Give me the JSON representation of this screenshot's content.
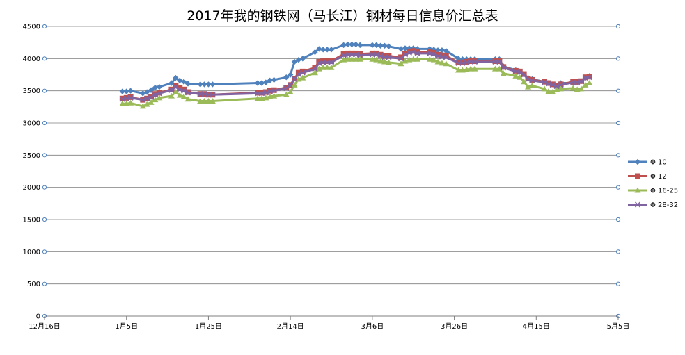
{
  "chart_data": {
    "type": "line",
    "title": "2017年我的钢铁网（马长江）钢材每日信息价汇总表",
    "xlabel": "",
    "ylabel": "",
    "ylim": [
      0,
      4500
    ],
    "y_ticks": [
      0,
      500,
      1000,
      1500,
      2000,
      2500,
      3000,
      3500,
      4000,
      4500
    ],
    "x_tick_labels": [
      "12月16日",
      "1月5日",
      "1月25日",
      "2月14日",
      "3月6日",
      "3月26日",
      "4月15日",
      "5月5日"
    ],
    "x_tick_dates": [
      "2016-12-16",
      "2017-01-05",
      "2017-01-25",
      "2017-02-14",
      "2017-03-06",
      "2017-03-26",
      "2017-04-15",
      "2017-05-05"
    ],
    "x_range": [
      "2016-12-16",
      "2017-05-05"
    ],
    "grid": true,
    "legend_position": "right",
    "x": [
      "2017-01-04",
      "2017-01-05",
      "2017-01-06",
      "2017-01-09",
      "2017-01-10",
      "2017-01-11",
      "2017-01-12",
      "2017-01-13",
      "2017-01-16",
      "2017-01-17",
      "2017-01-18",
      "2017-01-19",
      "2017-01-20",
      "2017-01-23",
      "2017-01-24",
      "2017-01-25",
      "2017-01-26",
      "2017-02-06",
      "2017-02-07",
      "2017-02-08",
      "2017-02-09",
      "2017-02-10",
      "2017-02-13",
      "2017-02-14",
      "2017-02-15",
      "2017-02-16",
      "2017-02-17",
      "2017-02-20",
      "2017-02-21",
      "2017-02-22",
      "2017-02-23",
      "2017-02-24",
      "2017-02-27",
      "2017-02-28",
      "2017-03-01",
      "2017-03-02",
      "2017-03-03",
      "2017-03-06",
      "2017-03-07",
      "2017-03-08",
      "2017-03-09",
      "2017-03-10",
      "2017-03-13",
      "2017-03-14",
      "2017-03-15",
      "2017-03-16",
      "2017-03-17",
      "2017-03-20",
      "2017-03-21",
      "2017-03-22",
      "2017-03-23",
      "2017-03-24",
      "2017-03-27",
      "2017-03-28",
      "2017-03-29",
      "2017-03-30",
      "2017-03-31",
      "2017-04-05",
      "2017-04-06",
      "2017-04-07",
      "2017-04-10",
      "2017-04-11",
      "2017-04-12",
      "2017-04-13",
      "2017-04-14",
      "2017-04-17",
      "2017-04-18",
      "2017-04-19",
      "2017-04-20",
      "2017-04-21",
      "2017-04-24",
      "2017-04-25",
      "2017-04-26",
      "2017-04-27",
      "2017-04-28"
    ],
    "series": [
      {
        "name": "Φ 10",
        "color": "#4F81BD",
        "marker": "diamond",
        "values": [
          3490,
          3490,
          3500,
          3460,
          3480,
          3510,
          3550,
          3560,
          3620,
          3700,
          3660,
          3640,
          3610,
          3600,
          3600,
          3600,
          3600,
          3620,
          3620,
          3630,
          3660,
          3670,
          3710,
          3750,
          3950,
          3980,
          4000,
          4100,
          4150,
          4140,
          4140,
          4140,
          4210,
          4220,
          4220,
          4220,
          4210,
          4210,
          4210,
          4200,
          4200,
          4190,
          4150,
          4160,
          4160,
          4160,
          4150,
          4150,
          4140,
          4130,
          4130,
          4120,
          4000,
          3990,
          3990,
          3990,
          3990,
          3990,
          3990,
          3880,
          3820,
          3800,
          3760,
          3700,
          3680,
          3640,
          3620,
          3600,
          3580,
          3620,
          3620,
          3630,
          3650,
          3700,
          3730
        ]
      },
      {
        "name": "Φ 12",
        "color": "#C0504D",
        "marker": "square",
        "values": [
          3380,
          3390,
          3400,
          3360,
          3380,
          3410,
          3450,
          3470,
          3520,
          3580,
          3540,
          3520,
          3480,
          3450,
          3450,
          3440,
          3440,
          3470,
          3470,
          3480,
          3500,
          3510,
          3550,
          3590,
          3690,
          3780,
          3800,
          3860,
          3950,
          3960,
          3960,
          3960,
          4070,
          4080,
          4080,
          4080,
          4070,
          4080,
          4080,
          4060,
          4040,
          4040,
          4020,
          4080,
          4110,
          4120,
          4100,
          4100,
          4090,
          4060,
          4050,
          4040,
          3940,
          3940,
          3950,
          3960,
          3960,
          3960,
          3960,
          3870,
          3810,
          3800,
          3760,
          3690,
          3670,
          3640,
          3620,
          3600,
          3580,
          3600,
          3640,
          3640,
          3650,
          3710,
          3720
        ]
      },
      {
        "name": "Φ 16-25",
        "color": "#9BBB59",
        "marker": "triangle",
        "values": [
          3300,
          3300,
          3310,
          3260,
          3290,
          3320,
          3360,
          3390,
          3420,
          3480,
          3430,
          3410,
          3370,
          3340,
          3340,
          3340,
          3340,
          3380,
          3380,
          3390,
          3410,
          3420,
          3440,
          3480,
          3590,
          3680,
          3700,
          3780,
          3840,
          3860,
          3860,
          3860,
          3980,
          3990,
          3990,
          3990,
          3990,
          3990,
          3980,
          3960,
          3950,
          3940,
          3920,
          3960,
          3980,
          3990,
          3990,
          3990,
          3980,
          3950,
          3930,
          3920,
          3820,
          3820,
          3830,
          3840,
          3840,
          3840,
          3840,
          3770,
          3730,
          3710,
          3640,
          3560,
          3580,
          3530,
          3490,
          3480,
          3520,
          3530,
          3540,
          3520,
          3530,
          3590,
          3620
        ]
      },
      {
        "name": "Φ 28-32",
        "color": "#8064A2",
        "marker": "x",
        "values": [
          3370,
          3380,
          3390,
          3360,
          3380,
          3400,
          3440,
          3460,
          3510,
          3560,
          3520,
          3500,
          3470,
          3450,
          3450,
          3440,
          3440,
          3460,
          3460,
          3470,
          3490,
          3500,
          3540,
          3580,
          3680,
          3760,
          3780,
          3840,
          3930,
          3940,
          3940,
          3940,
          4050,
          4060,
          4060,
          4060,
          4050,
          4060,
          4060,
          4040,
          4020,
          4020,
          4000,
          4060,
          4090,
          4100,
          4080,
          4080,
          4070,
          4040,
          4030,
          4020,
          3930,
          3930,
          3940,
          3950,
          3950,
          3950,
          3950,
          3860,
          3800,
          3790,
          3750,
          3680,
          3660,
          3630,
          3610,
          3590,
          3570,
          3590,
          3630,
          3630,
          3640,
          3700,
          3710
        ]
      }
    ]
  }
}
